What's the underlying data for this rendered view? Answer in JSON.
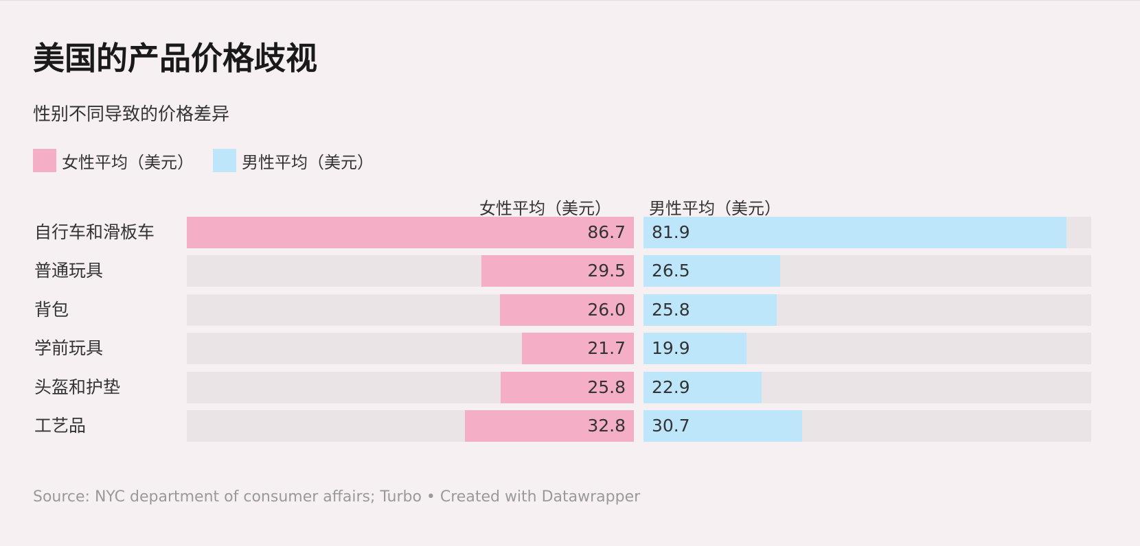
{
  "title": "美国的产品价格歧视",
  "subtitle": "性别不同导致的价格差异",
  "legend": [
    {
      "label": "女性平均（美元）",
      "color": "#f4afc7"
    },
    {
      "label": "男性平均（美元）",
      "color": "#bde6fb"
    }
  ],
  "source": "Source: NYC department of consumer affairs; Turbo • Created with Datawrapper",
  "chart_data": {
    "type": "bar",
    "title": "美国的产品价格歧视",
    "subtitle": "性别不同导致的价格差异",
    "columns": [
      "女性平均（美元）",
      "男性平均（美元）"
    ],
    "categories": [
      "自行车和滑板车",
      "普通玩具",
      "背包",
      "学前玩具",
      "头盔和护垫",
      "工艺品"
    ],
    "series": [
      {
        "name": "女性平均（美元）",
        "values": [
          86.7,
          29.5,
          26.0,
          21.7,
          25.8,
          32.8
        ],
        "labels": [
          "86.7",
          "29.5",
          "26.0",
          "21.7",
          "25.8",
          "32.8"
        ],
        "color": "#f4afc7"
      },
      {
        "name": "男性平均（美元）",
        "values": [
          81.9,
          26.5,
          25.8,
          19.9,
          22.9,
          30.7
        ],
        "labels": [
          "81.9",
          "26.5",
          "25.8",
          "19.9",
          "22.9",
          "30.7"
        ],
        "color": "#bde6fb"
      }
    ],
    "xlim": [
      0,
      86.7
    ],
    "track_color": "#ebe4e7",
    "legend_position": "top-left"
  }
}
